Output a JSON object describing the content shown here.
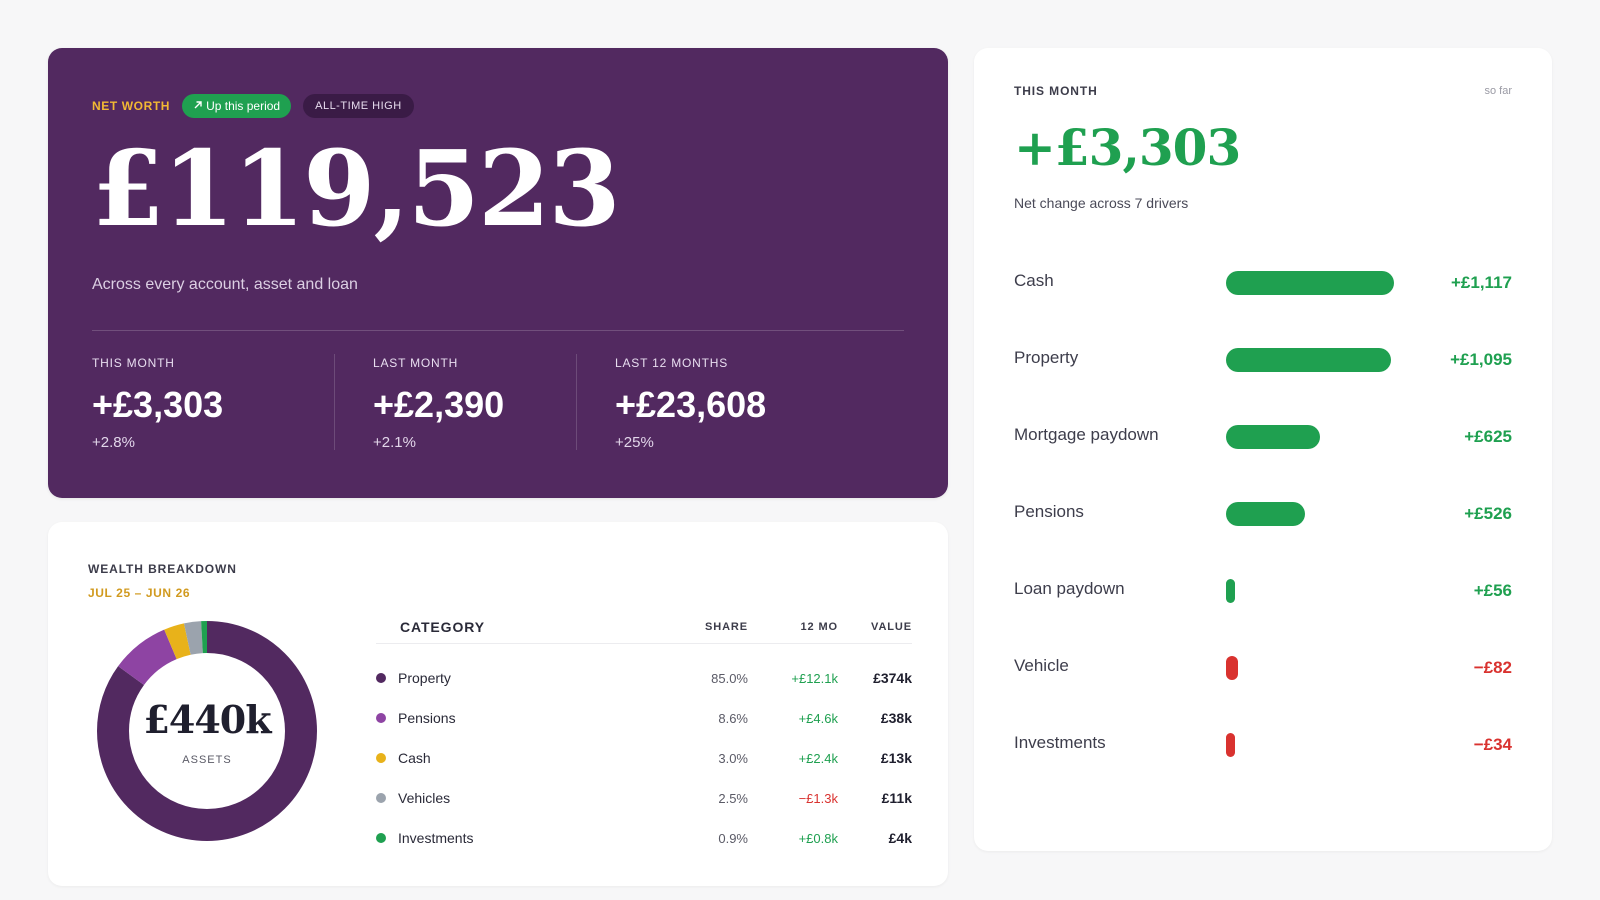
{
  "hero": {
    "label": "NET WORTH",
    "up_pill": "Up this period",
    "badge": "ALL-TIME HIGH",
    "amount": "£119,523",
    "subtitle": "Across every account, asset and loan",
    "stats": [
      {
        "label": "THIS MONTH",
        "value": "+£3,303",
        "pct": "+2.8%"
      },
      {
        "label": "LAST MONTH",
        "value": "+£2,390",
        "pct": "+2.1%"
      },
      {
        "label": "LAST 12 MONTHS",
        "value": "+£23,608",
        "pct": "+25%"
      }
    ]
  },
  "month": {
    "label": "THIS MONTH",
    "so_far": "so far",
    "amount": "+£3,303",
    "subtitle": "Net change across 7 drivers",
    "drivers": [
      {
        "name": "Cash",
        "value": "+£1,117",
        "amount": 1117
      },
      {
        "name": "Property",
        "value": "+£1,095",
        "amount": 1095
      },
      {
        "name": "Mortgage paydown",
        "value": "+£625",
        "amount": 625
      },
      {
        "name": "Pensions",
        "value": "+£526",
        "amount": 526
      },
      {
        "name": "Loan paydown",
        "value": "+£56",
        "amount": 56
      },
      {
        "name": "Vehicle",
        "value": "−£82",
        "amount": -82
      },
      {
        "name": "Investments",
        "value": "−£34",
        "amount": -34
      }
    ]
  },
  "wealth": {
    "title": "WEALTH BREAKDOWN",
    "range": "JUL 25 – JUN 26",
    "total": "£440k",
    "total_label": "ASSETS",
    "columns": {
      "category": "CATEGORY",
      "share": "SHARE",
      "twelve_mo": "12 MO",
      "value": "VALUE"
    },
    "rows": [
      {
        "category": "Property",
        "share": "85.0%",
        "share_num": 85.0,
        "twelve_mo": "+£12.1k",
        "trend": "pos",
        "value": "£374k",
        "color": "#522960"
      },
      {
        "category": "Pensions",
        "share": "8.6%",
        "share_num": 8.6,
        "twelve_mo": "+£4.6k",
        "trend": "pos",
        "value": "£38k",
        "color": "#8e44a3"
      },
      {
        "category": "Cash",
        "share": "3.0%",
        "share_num": 3.0,
        "twelve_mo": "+£2.4k",
        "trend": "pos",
        "value": "£13k",
        "color": "#e8b21a"
      },
      {
        "category": "Vehicles",
        "share": "2.5%",
        "share_num": 2.5,
        "twelve_mo": "−£1.3k",
        "trend": "neg",
        "value": "£11k",
        "color": "#9ba3ad"
      },
      {
        "category": "Investments",
        "share": "0.9%",
        "share_num": 0.9,
        "twelve_mo": "+£0.8k",
        "trend": "pos",
        "value": "£4k",
        "color": "#1fa050"
      }
    ]
  },
  "colors": {
    "hero_bg": "#522960",
    "positive": "#1fa050",
    "negative": "#d9322f",
    "accent_gold": "#f2b933"
  }
}
